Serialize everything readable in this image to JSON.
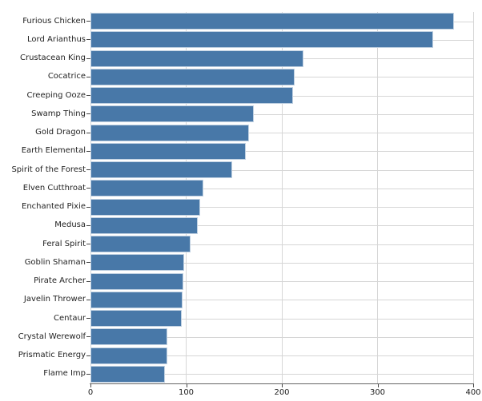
{
  "chart_data": {
    "type": "bar",
    "orientation": "horizontal",
    "title": "",
    "xlabel": "",
    "ylabel": "",
    "xlim": [
      0,
      400
    ],
    "xticks": [
      0,
      100,
      200,
      300,
      400
    ],
    "grid": true,
    "legend": "none",
    "bar_color": "#4878a8",
    "bar_edge_color": "#ffffff",
    "gridline_color": "#d6d6d6",
    "axis_line_color": "#666666",
    "text_color": "#1f1f1f",
    "categories": [
      "Furious Chicken",
      "Lord Arianthus",
      "Crustacean King",
      "Cocatrice",
      "Creeping Ooze",
      "Swamp Thing",
      "Gold Dragon",
      "Earth Elemental",
      "Spirit of the Forest",
      "Elven Cutthroat",
      "Enchanted Pixie",
      "Medusa",
      "Feral Spirit",
      "Goblin Shaman",
      "Pirate Archer",
      "Javelin Thrower",
      "Centaur",
      "Crystal Werewolf",
      "Prismatic Energy",
      "Flame Imp"
    ],
    "values": [
      380,
      358,
      223,
      213,
      212,
      171,
      166,
      162,
      148,
      118,
      115,
      112,
      105,
      98,
      97,
      96,
      95,
      80,
      80,
      78
    ]
  }
}
